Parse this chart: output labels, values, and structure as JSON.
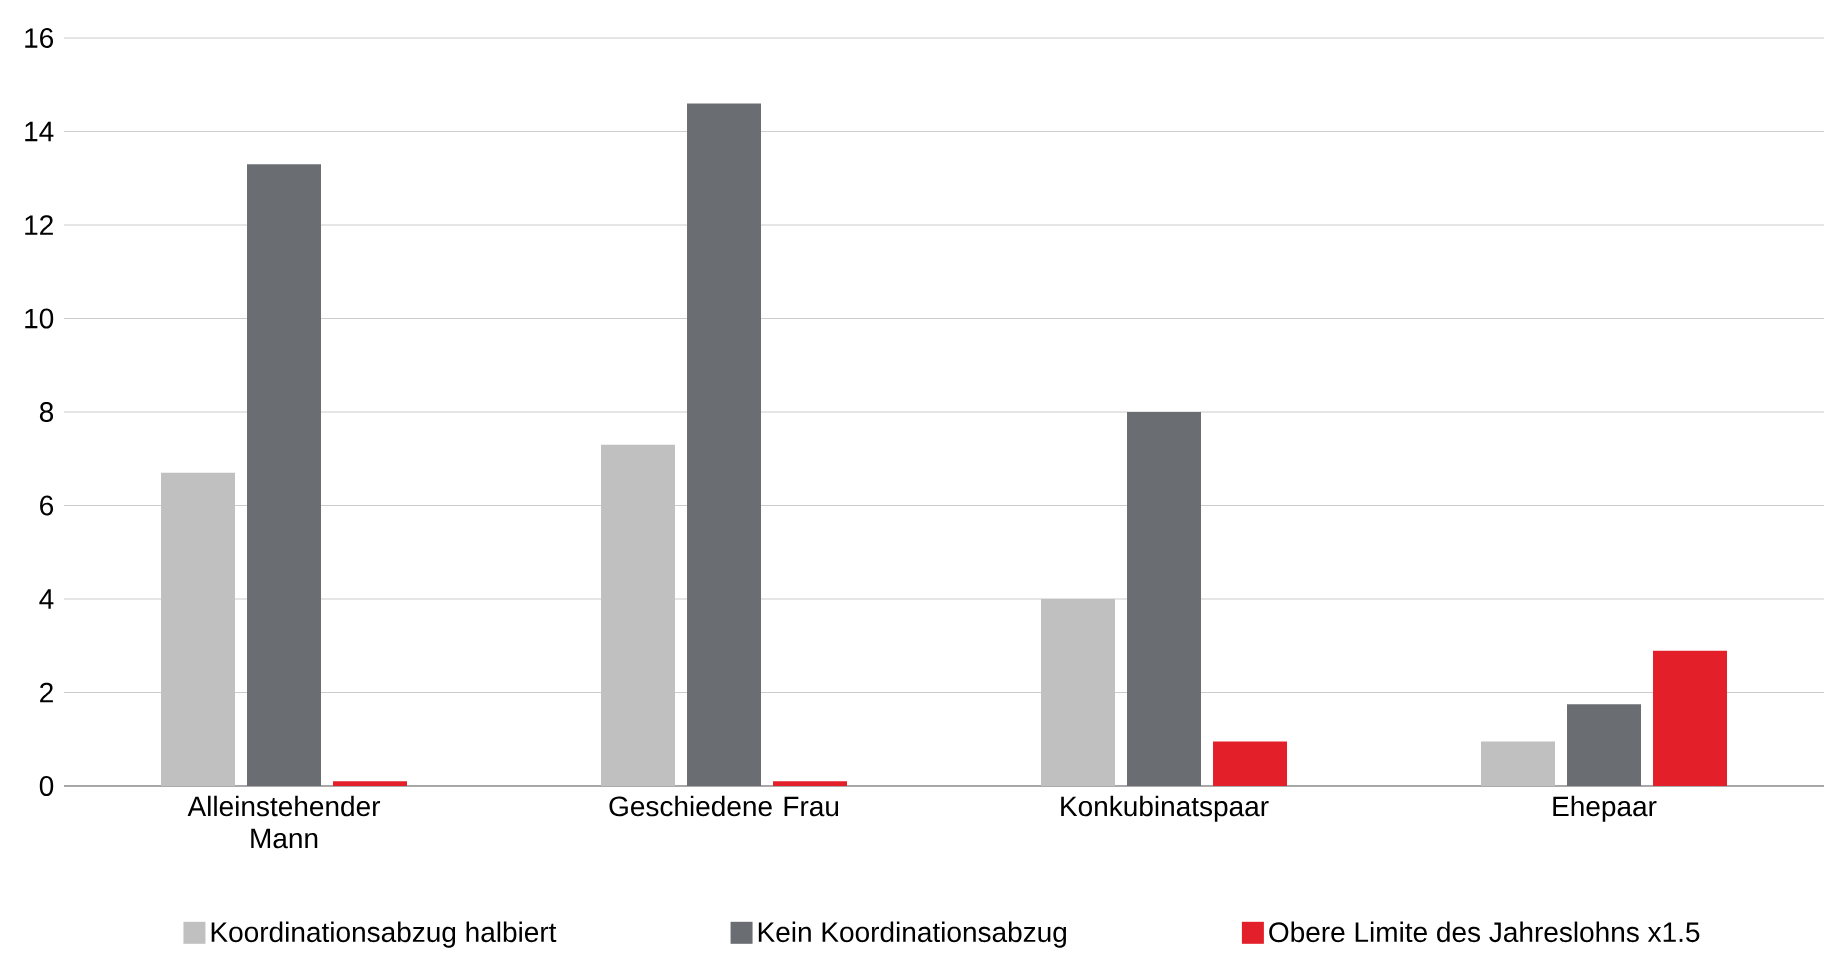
{
  "chart_data": {
    "type": "bar",
    "categories": [
      "Alleinstehender Mann",
      "Geschiedene Frau",
      "Konkubinatspaar",
      "Ehepaar"
    ],
    "series": [
      {
        "name": "Koordinationsabzug halbiert",
        "color": "#c0c0c0",
        "values": [
          6.7,
          7.3,
          4.0,
          0.95
        ]
      },
      {
        "name": "Kein Koordinationsabzug",
        "color": "#6a6e72",
        "values": [
          13.3,
          14.6,
          8.0,
          1.75
        ]
      },
      {
        "name": "Obere Limite des Jahreslohns x1.5",
        "color": "#e3202a",
        "values": [
          0.1,
          0.1,
          0.95,
          2.9
        ]
      }
    ],
    "ylim": [
      0,
      16
    ],
    "yticks": [
      0,
      2,
      4,
      6,
      8,
      10,
      12,
      14,
      16
    ],
    "grid": "y",
    "legend": "bottom"
  }
}
